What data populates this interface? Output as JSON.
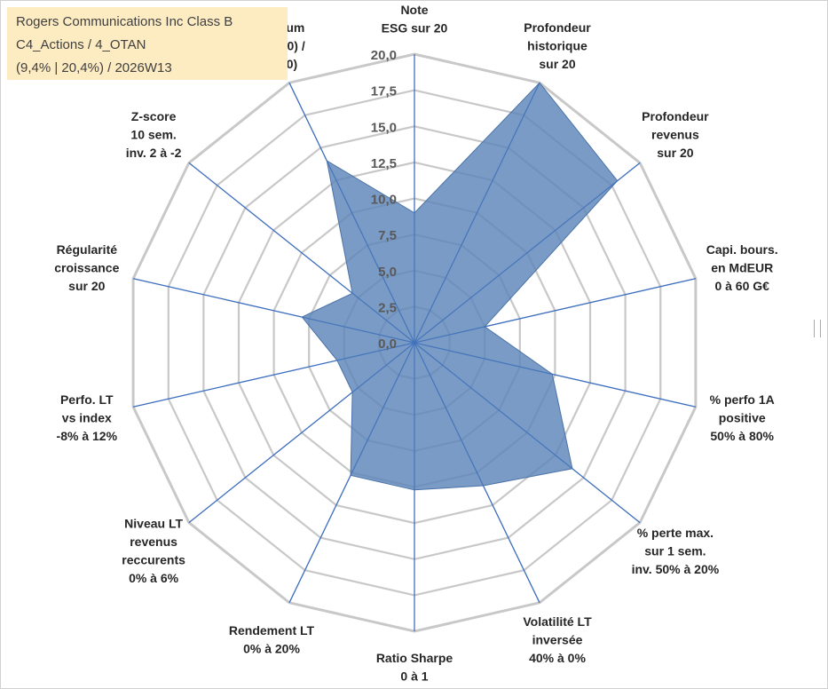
{
  "title": {
    "line1": "Rogers Communications Inc Class B",
    "line2": "C4_Actions / 4_OTAN",
    "line3": "(9,4% | 20,4%) / 2026W13"
  },
  "colors": {
    "fill": "#5b85b8",
    "stroke": "#4a72a8",
    "axis": "#3f6fbf",
    "grid": "#c8c8c8",
    "title_bg": "#fdebc2"
  },
  "chart_data": {
    "type": "radar",
    "title": "",
    "rmin": 0,
    "rmax": 20,
    "ticks": [
      "0,0",
      "2,5",
      "5,0",
      "7,5",
      "10,0",
      "12,5",
      "15,0",
      "17,5",
      "20,0"
    ],
    "axes": [
      {
        "lines": [
          "Note",
          "ESG sur 20"
        ]
      },
      {
        "lines": [
          "Profondeur",
          "historique",
          "sur 20"
        ]
      },
      {
        "lines": [
          "Profondeur",
          "revenus",
          "sur 20"
        ]
      },
      {
        "lines": [
          "Capi. bours.",
          "en MdEUR",
          "0 à 60 G€"
        ]
      },
      {
        "lines": [
          "% perfo 1A",
          "positive",
          "50% à 80%"
        ]
      },
      {
        "lines": [
          "% perte max.",
          "sur 1 sem.",
          "inv. 50% à 20%"
        ]
      },
      {
        "lines": [
          "Volatilité LT",
          "inversée",
          "40% à 0%"
        ]
      },
      {
        "lines": [
          "Ratio Sharpe",
          "0 à 1"
        ]
      },
      {
        "lines": [
          "Rendement LT",
          "0% à 20%"
        ]
      },
      {
        "lines": [
          "Niveau LT",
          "revenus",
          "reccurents",
          "0% à 6%"
        ]
      },
      {
        "lines": [
          "Perfo. LT",
          "vs index",
          "-8% à 12%"
        ]
      },
      {
        "lines": [
          "Régularité",
          "croissance",
          "sur 20"
        ]
      },
      {
        "lines": [
          "Z-score",
          "10 sem.",
          "inv. 2 à -2"
        ]
      },
      {
        "lines": [
          "Momentum",
          "Achat (20) /",
          "Vente (0)"
        ]
      }
    ],
    "series": [
      {
        "values": [
          9.0,
          20.0,
          18.0,
          5.0,
          9.8,
          14.0,
          11.0,
          10.2,
          10.2,
          5.5,
          5.5,
          8.0,
          5.5,
          14.0
        ]
      }
    ]
  }
}
